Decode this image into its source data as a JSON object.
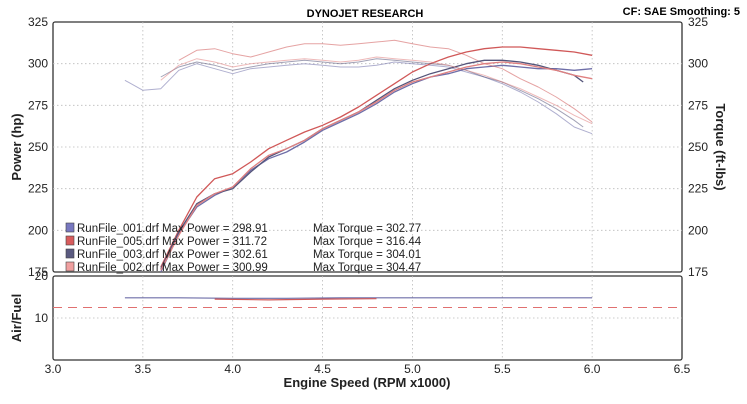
{
  "header": {
    "title": "DYNOJET RESEARCH",
    "settings": "CF: SAE  Smoothing: 5"
  },
  "chart_data": [
    {
      "type": "line",
      "title": "DYNOJET RESEARCH",
      "xlabel": "Engine Speed (RPM x1000)",
      "ylabel": "Power (hp)",
      "y2label": "Torque (ft-lbs)",
      "xlim": [
        3.0,
        6.5
      ],
      "ylim": [
        175,
        325
      ],
      "y2lim": [
        175,
        325
      ],
      "xticks": [
        "3.0",
        "3.5",
        "4.0",
        "4.5",
        "5.0",
        "5.5",
        "6.0",
        "6.5"
      ],
      "yticks": [
        "175",
        "200",
        "225",
        "250",
        "275",
        "300",
        "325"
      ],
      "y2ticks": [
        "175",
        "200",
        "225",
        "250",
        "275",
        "300",
        "325"
      ],
      "grid": true,
      "legend_position": "bottom-left",
      "series": [
        {
          "name": "RunFile_001.drf",
          "label": "RunFile_001.drf Max Power = 298.91",
          "torque_label": "Max Torque = 302.77",
          "color": "#6e6ea8",
          "swatch": "#7878c0",
          "power": [
            [
              3.6,
              175
            ],
            [
              3.7,
              198
            ],
            [
              3.8,
              214
            ],
            [
              3.9,
              221
            ],
            [
              4.0,
              226
            ],
            [
              4.1,
              236
            ],
            [
              4.2,
              243
            ],
            [
              4.3,
              247
            ],
            [
              4.4,
              253
            ],
            [
              4.5,
              260
            ],
            [
              4.6,
              265
            ],
            [
              4.7,
              270
            ],
            [
              4.8,
              276
            ],
            [
              4.9,
              283
            ],
            [
              5.0,
              288
            ],
            [
              5.1,
              292
            ],
            [
              5.2,
              294
            ],
            [
              5.3,
              297
            ],
            [
              5.4,
              298
            ],
            [
              5.5,
              299
            ],
            [
              5.6,
              298
            ],
            [
              5.7,
              297
            ],
            [
              5.8,
              297
            ],
            [
              5.9,
              296
            ],
            [
              6.0,
              297
            ]
          ],
          "torque": [
            [
              3.4,
              290
            ],
            [
              3.5,
              284
            ],
            [
              3.6,
              285
            ],
            [
              3.7,
              296
            ],
            [
              3.8,
              300
            ],
            [
              3.9,
              297
            ],
            [
              4.0,
              294
            ],
            [
              4.1,
              297
            ],
            [
              4.2,
              298
            ],
            [
              4.3,
              299
            ],
            [
              4.4,
              300
            ],
            [
              4.5,
              299
            ],
            [
              4.6,
              298
            ],
            [
              4.7,
              298
            ],
            [
              4.8,
              299
            ],
            [
              4.9,
              301
            ],
            [
              5.0,
              300
            ],
            [
              5.1,
              299
            ],
            [
              5.2,
              298
            ],
            [
              5.3,
              295
            ],
            [
              5.4,
              292
            ],
            [
              5.5,
              288
            ],
            [
              5.6,
              283
            ],
            [
              5.7,
              277
            ],
            [
              5.8,
              270
            ],
            [
              5.9,
              262
            ],
            [
              6.0,
              258
            ]
          ]
        },
        {
          "name": "RunFile_005.drf",
          "label": "RunFile_005.drf Max Power = 311.72",
          "torque_label": "Max Torque = 316.44",
          "color": "#d05858",
          "swatch": "#d85c5c",
          "power": [
            [
              3.6,
              178
            ],
            [
              3.7,
              200
            ],
            [
              3.8,
              220
            ],
            [
              3.9,
              231
            ],
            [
              4.0,
              234
            ],
            [
              4.1,
              241
            ],
            [
              4.2,
              249
            ],
            [
              4.3,
              254
            ],
            [
              4.4,
              259
            ],
            [
              4.5,
              263
            ],
            [
              4.6,
              268
            ],
            [
              4.7,
              274
            ],
            [
              4.8,
              281
            ],
            [
              4.9,
              288
            ],
            [
              5.0,
              295
            ],
            [
              5.1,
              300
            ],
            [
              5.2,
              304
            ],
            [
              5.3,
              307
            ],
            [
              5.4,
              309
            ],
            [
              5.5,
              310
            ],
            [
              5.6,
              310
            ],
            [
              5.7,
              309
            ],
            [
              5.8,
              308
            ],
            [
              5.9,
              307
            ],
            [
              6.0,
              305
            ]
          ],
          "torque": [
            [
              3.7,
              302
            ],
            [
              3.8,
              308
            ],
            [
              3.9,
              309
            ],
            [
              4.0,
              306
            ],
            [
              4.1,
              304
            ],
            [
              4.2,
              307
            ],
            [
              4.3,
              310
            ],
            [
              4.4,
              312
            ],
            [
              4.5,
              312
            ],
            [
              4.6,
              311
            ],
            [
              4.7,
              312
            ],
            [
              4.8,
              313
            ],
            [
              4.9,
              314
            ],
            [
              5.0,
              312
            ],
            [
              5.1,
              310
            ],
            [
              5.2,
              309
            ],
            [
              5.3,
              305
            ],
            [
              5.4,
              300
            ],
            [
              5.5,
              297
            ],
            [
              5.6,
              291
            ],
            [
              5.7,
              286
            ],
            [
              5.8,
              280
            ],
            [
              5.9,
              273
            ],
            [
              6.0,
              265
            ]
          ]
        },
        {
          "name": "RunFile_003.drf",
          "label": "RunFile_003.drf Max Power = 302.61",
          "torque_label": "Max Torque = 304.01",
          "color": "#55557a",
          "swatch": "#5a5a80",
          "power": [
            [
              3.6,
              177
            ],
            [
              3.7,
              199
            ],
            [
              3.8,
              216
            ],
            [
              3.9,
              222
            ],
            [
              4.0,
              225
            ],
            [
              4.1,
              235
            ],
            [
              4.2,
              244
            ],
            [
              4.3,
              249
            ],
            [
              4.4,
              254
            ],
            [
              4.5,
              261
            ],
            [
              4.6,
              266
            ],
            [
              4.7,
              271
            ],
            [
              4.8,
              278
            ],
            [
              4.9,
              285
            ],
            [
              5.0,
              290
            ],
            [
              5.1,
              294
            ],
            [
              5.2,
              297
            ],
            [
              5.3,
              300
            ],
            [
              5.4,
              302
            ],
            [
              5.5,
              302
            ],
            [
              5.6,
              301
            ],
            [
              5.7,
              299
            ],
            [
              5.8,
              296
            ],
            [
              5.9,
              293
            ],
            [
              5.95,
              289
            ]
          ],
          "torque": [
            [
              3.6,
              292
            ],
            [
              3.7,
              298
            ],
            [
              3.8,
              301
            ],
            [
              3.9,
              299
            ],
            [
              4.0,
              296
            ],
            [
              4.1,
              298
            ],
            [
              4.2,
              300
            ],
            [
              4.3,
              301
            ],
            [
              4.4,
              302
            ],
            [
              4.5,
              301
            ],
            [
              4.6,
              300
            ],
            [
              4.7,
              301
            ],
            [
              4.8,
              303
            ],
            [
              4.9,
              302
            ],
            [
              5.0,
              301
            ],
            [
              5.1,
              300
            ],
            [
              5.2,
              299
            ],
            [
              5.3,
              296
            ],
            [
              5.4,
              292
            ],
            [
              5.5,
              289
            ],
            [
              5.6,
              284
            ],
            [
              5.7,
              279
            ],
            [
              5.8,
              273
            ],
            [
              5.9,
              266
            ],
            [
              5.95,
              262
            ]
          ]
        },
        {
          "name": "RunFile_002.drf",
          "label": "RunFile_002.drf Max Power = 300.99",
          "torque_label": "Max Torque = 304.47",
          "color": "#e08080",
          "swatch": "#f0a0a0",
          "power": [
            [
              3.6,
              176
            ],
            [
              3.7,
              197
            ],
            [
              3.8,
              215
            ],
            [
              3.9,
              222
            ],
            [
              4.0,
              226
            ],
            [
              4.1,
              237
            ],
            [
              4.2,
              245
            ],
            [
              4.3,
              249
            ],
            [
              4.4,
              254
            ],
            [
              4.5,
              261
            ],
            [
              4.6,
              266
            ],
            [
              4.7,
              271
            ],
            [
              4.8,
              277
            ],
            [
              4.9,
              284
            ],
            [
              5.0,
              289
            ],
            [
              5.1,
              292
            ],
            [
              5.2,
              295
            ],
            [
              5.3,
              298
            ],
            [
              5.4,
              300
            ],
            [
              5.5,
              301
            ],
            [
              5.6,
              300
            ],
            [
              5.7,
              298
            ],
            [
              5.8,
              296
            ],
            [
              5.9,
              293
            ],
            [
              6.0,
              291
            ]
          ],
          "torque": [
            [
              3.6,
              290
            ],
            [
              3.7,
              299
            ],
            [
              3.8,
              303
            ],
            [
              3.9,
              301
            ],
            [
              4.0,
              298
            ],
            [
              4.1,
              300
            ],
            [
              4.2,
              301
            ],
            [
              4.3,
              302
            ],
            [
              4.4,
              303
            ],
            [
              4.5,
              302
            ],
            [
              4.6,
              301
            ],
            [
              4.7,
              302
            ],
            [
              4.8,
              304
            ],
            [
              4.9,
              303
            ],
            [
              5.0,
              302
            ],
            [
              5.1,
              301
            ],
            [
              5.2,
              299
            ],
            [
              5.3,
              296
            ],
            [
              5.4,
              293
            ],
            [
              5.5,
              289
            ],
            [
              5.6,
              285
            ],
            [
              5.7,
              280
            ],
            [
              5.8,
              275
            ],
            [
              5.9,
              269
            ],
            [
              6.0,
              264
            ]
          ]
        }
      ]
    },
    {
      "type": "line",
      "ylabel": "Air/Fuel",
      "xlim": [
        3.0,
        6.5
      ],
      "ylim": [
        0,
        20
      ],
      "yticks": [
        "10",
        "20"
      ],
      "grid": true,
      "reference_line": {
        "value": 12.5,
        "color": "#e07070",
        "style": "dashed"
      },
      "series": [
        {
          "name": "RunFile_001.drf",
          "color": "#6e6ea8",
          "values": [
            [
              3.4,
              14.8
            ],
            [
              3.7,
              14.8
            ],
            [
              4.0,
              14.7
            ],
            [
              4.3,
              14.7
            ],
            [
              4.6,
              14.8
            ],
            [
              5.0,
              14.8
            ],
            [
              5.5,
              14.8
            ],
            [
              6.0,
              14.8
            ]
          ]
        },
        {
          "name": "RunFile_005.drf",
          "color": "#d05858",
          "values": [
            [
              3.9,
              14.5
            ],
            [
              4.2,
              14.3
            ],
            [
              4.5,
              14.5
            ],
            [
              4.8,
              14.6
            ]
          ]
        }
      ]
    }
  ]
}
